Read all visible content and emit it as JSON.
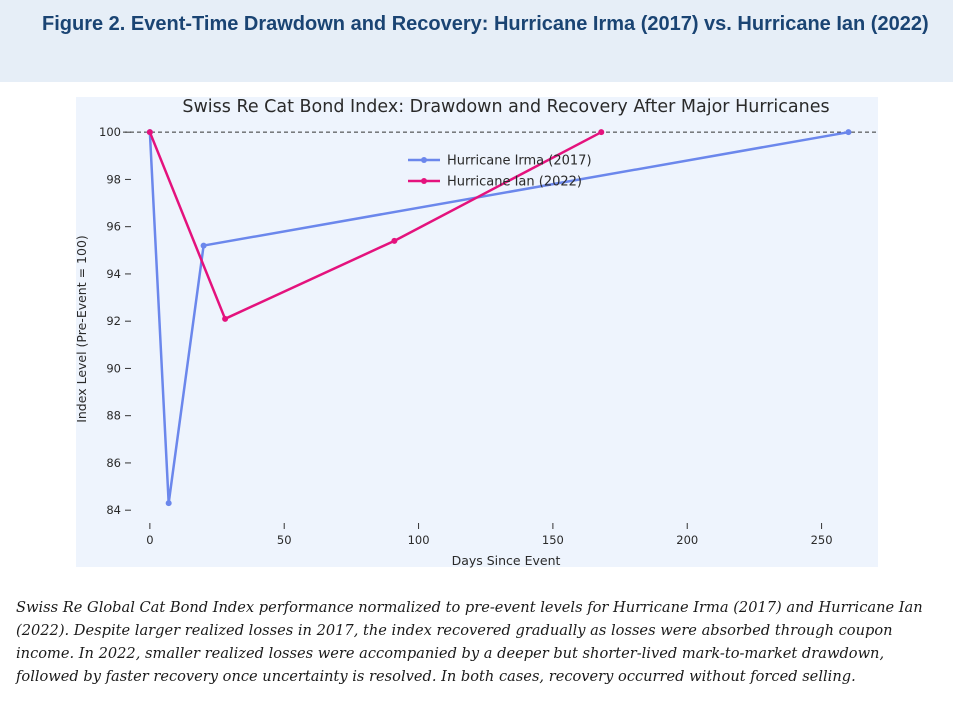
{
  "figure": {
    "title": "Figure 2. Event-Time Drawdown and Recovery: Hurricane Irma (2017) vs. Hurricane Ian (2022)",
    "caption": "Swiss Re Global Cat Bond Index performance normalized to pre-event levels for Hurricane Irma (2017) and Hurricane Ian (2022). Despite larger realized losses in 2017, the index recovered gradually as losses were absorbed through coupon income. In 2022, smaller realized losses were accompanied by a deeper but shorter-lived mark-to-market drawdown, followed by faster recovery once uncertainty is resolved. In both cases, recovery occurred without forced selling."
  },
  "chart_data": {
    "type": "line",
    "title": "Swiss Re Cat Bond Index: Drawdown and Recovery After Major Hurricanes",
    "xlabel": "Days Since Event",
    "ylabel": "Index Level (Pre-Event = 100)",
    "xlim": [
      -10,
      271
    ],
    "ylim": [
      83.5,
      100.6
    ],
    "xticks": [
      0,
      50,
      100,
      150,
      200,
      250
    ],
    "yticks": [
      84,
      86,
      88,
      90,
      92,
      94,
      96,
      98,
      100
    ],
    "reference_line": {
      "y": 100,
      "style": "dashed"
    },
    "legend_position": "top-center",
    "grid": false,
    "background": "#eef4fd",
    "series": [
      {
        "name": "Hurricane Irma (2017)",
        "color": "#6b87ec",
        "x": [
          0,
          7,
          20,
          260
        ],
        "y": [
          100,
          84.3,
          95.2,
          100
        ]
      },
      {
        "name": "Hurricane Ian (2022)",
        "color": "#e4127d",
        "x": [
          0,
          28,
          91,
          168
        ],
        "y": [
          100,
          92.1,
          95.4,
          100
        ]
      }
    ]
  }
}
